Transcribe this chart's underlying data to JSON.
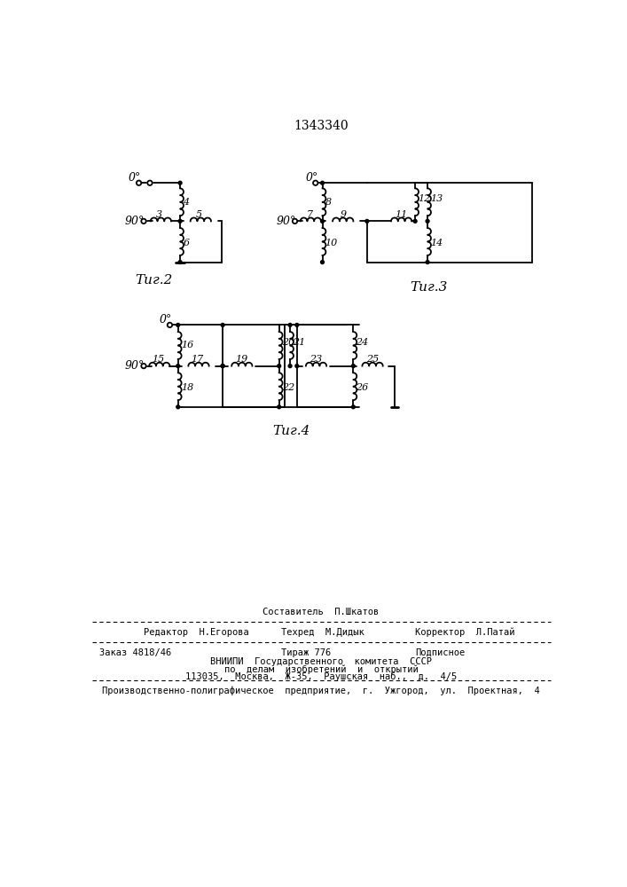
{
  "title": "1343340",
  "fig2_label": "Τиг.2",
  "fig3_label": "Τиг.3",
  "fig4_label": "Τиг.4",
  "background_color": "#ffffff",
  "footer": {
    "sestavitel": "Составитель  П.Шкатов",
    "redaktor": "Редактор  Н.Егорова",
    "tehred": "Техред  М.Дидык",
    "korrektor": "Корректор  Л.Патай",
    "zakaz": "Заказ 4818/46",
    "tirazh": "Тираж 776",
    "podpisnoe": "Подписное",
    "vniippi": "ВНИИПИ  Государственного  комитета  СССР",
    "po_delam": "по  делам  изобретений  и  открытий",
    "address": "113035,  Москва,  Ж-35,  Раушская  наб.,  д.  4/5",
    "proizv": "Производственно-полиграфическое  предприятие,  г.  Ужгород,  ул.  Проектная,  4"
  }
}
